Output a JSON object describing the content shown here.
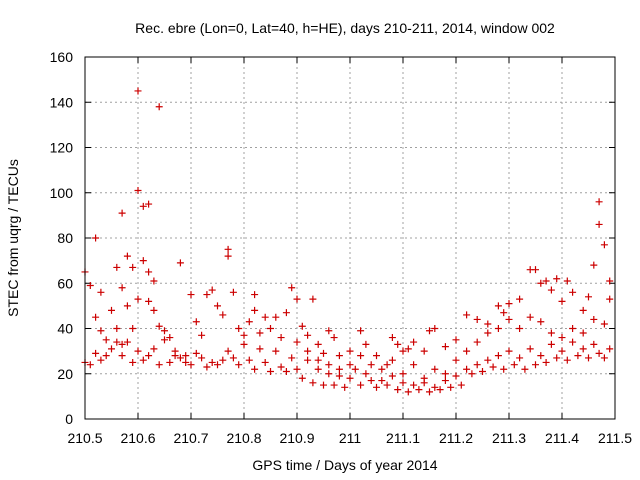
{
  "chart_data": {
    "type": "scatter",
    "title": "Rec. ebre (Lon=0, Lat=40, h=HE), days 210-211, 2014, window 002",
    "xlabel": "GPS time / Days of year 2014",
    "ylabel": "STEC from uqrg / TECUs",
    "xlim": [
      210.5,
      211.5
    ],
    "ylim": [
      0,
      160
    ],
    "xticks": [
      210.5,
      210.6,
      210.7,
      210.8,
      210.9,
      211.0,
      211.1,
      211.2,
      211.3,
      211.4,
      211.5
    ],
    "xtick_labels": [
      "210.5",
      "210.6",
      "210.7",
      "210.8",
      "210.9",
      "211",
      "211.1",
      "211.2",
      "211.3",
      "211.4",
      "211.5"
    ],
    "yticks": [
      0,
      20,
      40,
      60,
      80,
      100,
      120,
      140,
      160
    ],
    "ytick_labels": [
      "0",
      "20",
      "40",
      "60",
      "80",
      "100",
      "120",
      "140",
      "160"
    ],
    "grid": true,
    "marker": "plus",
    "color": "#cc0000",
    "series": [
      {
        "points": [
          [
            210.5,
            65
          ],
          [
            210.51,
            59
          ],
          [
            210.52,
            80
          ],
          [
            210.52,
            45
          ],
          [
            210.53,
            56
          ],
          [
            210.53,
            39
          ],
          [
            210.54,
            35
          ],
          [
            210.55,
            48
          ],
          [
            210.56,
            67
          ],
          [
            210.56,
            40
          ],
          [
            210.57,
            91
          ],
          [
            210.57,
            58
          ],
          [
            210.57,
            33
          ],
          [
            210.58,
            72
          ],
          [
            210.58,
            50
          ],
          [
            210.59,
            67
          ],
          [
            210.59,
            40
          ],
          [
            210.6,
            145
          ],
          [
            210.6,
            101
          ],
          [
            210.6,
            53
          ],
          [
            210.61,
            94
          ],
          [
            210.61,
            70
          ],
          [
            210.62,
            95
          ],
          [
            210.62,
            65
          ],
          [
            210.62,
            52
          ],
          [
            210.63,
            61
          ],
          [
            210.63,
            48
          ],
          [
            210.64,
            138
          ],
          [
            210.64,
            41
          ],
          [
            210.65,
            39
          ],
          [
            210.66,
            36
          ],
          [
            210.67,
            30
          ],
          [
            210.68,
            69
          ],
          [
            210.69,
            28
          ],
          [
            210.7,
            55
          ],
          [
            210.71,
            43
          ],
          [
            210.72,
            37
          ],
          [
            210.73,
            55
          ],
          [
            210.74,
            57
          ],
          [
            210.75,
            50
          ],
          [
            210.76,
            46
          ],
          [
            210.77,
            75
          ],
          [
            210.77,
            72
          ],
          [
            210.78,
            56
          ],
          [
            210.79,
            40
          ],
          [
            210.8,
            37
          ],
          [
            210.81,
            43
          ],
          [
            210.82,
            55
          ],
          [
            210.82,
            48
          ],
          [
            210.83,
            38
          ],
          [
            210.84,
            45
          ],
          [
            210.85,
            40
          ],
          [
            210.86,
            45
          ],
          [
            210.87,
            36
          ],
          [
            210.88,
            47
          ],
          [
            210.89,
            58
          ],
          [
            210.9,
            53
          ],
          [
            210.91,
            41
          ],
          [
            210.92,
            37
          ],
          [
            210.93,
            53
          ],
          [
            210.94,
            33
          ],
          [
            210.95,
            29
          ],
          [
            210.96,
            39
          ],
          [
            210.97,
            36
          ],
          [
            210.98,
            28
          ],
          [
            211.0,
            24
          ],
          [
            211.02,
            39
          ],
          [
            211.03,
            33
          ],
          [
            211.05,
            28
          ],
          [
            211.07,
            24
          ],
          [
            211.08,
            36
          ],
          [
            211.09,
            33
          ],
          [
            211.1,
            30
          ],
          [
            211.11,
            31
          ],
          [
            211.12,
            34
          ],
          [
            211.14,
            30
          ],
          [
            211.15,
            39
          ],
          [
            211.16,
            40
          ],
          [
            211.18,
            32
          ],
          [
            211.2,
            35
          ],
          [
            211.22,
            46
          ],
          [
            211.24,
            44
          ],
          [
            211.26,
            42
          ],
          [
            211.28,
            50
          ],
          [
            211.29,
            47
          ],
          [
            211.3,
            51
          ],
          [
            211.32,
            53
          ],
          [
            211.34,
            66
          ],
          [
            211.35,
            66
          ],
          [
            211.36,
            60
          ],
          [
            211.37,
            61
          ],
          [
            211.38,
            57
          ],
          [
            211.39,
            62
          ],
          [
            211.4,
            52
          ],
          [
            211.41,
            61
          ],
          [
            211.42,
            56
          ],
          [
            211.44,
            48
          ],
          [
            211.45,
            54
          ],
          [
            211.46,
            68
          ],
          [
            211.47,
            96
          ],
          [
            211.47,
            86
          ],
          [
            211.48,
            77
          ],
          [
            211.49,
            61
          ],
          [
            211.49,
            53
          ],
          [
            210.5,
            25
          ],
          [
            210.51,
            24
          ],
          [
            210.52,
            29
          ],
          [
            210.53,
            26
          ],
          [
            210.54,
            28
          ],
          [
            210.55,
            31
          ],
          [
            210.56,
            34
          ],
          [
            210.57,
            28
          ],
          [
            210.58,
            34
          ],
          [
            210.59,
            25
          ],
          [
            210.6,
            30
          ],
          [
            210.61,
            26
          ],
          [
            210.62,
            28
          ],
          [
            210.63,
            31
          ],
          [
            210.64,
            24
          ],
          [
            210.65,
            35
          ],
          [
            210.66,
            25
          ],
          [
            210.67,
            28
          ],
          [
            210.68,
            27
          ],
          [
            210.69,
            25
          ],
          [
            210.7,
            24
          ],
          [
            210.71,
            29
          ],
          [
            210.72,
            27
          ],
          [
            210.73,
            23
          ],
          [
            210.74,
            25
          ],
          [
            210.75,
            24
          ],
          [
            210.76,
            26
          ],
          [
            210.77,
            30
          ],
          [
            210.78,
            27
          ],
          [
            210.79,
            24
          ],
          [
            210.8,
            33
          ],
          [
            210.81,
            26
          ],
          [
            210.82,
            22
          ],
          [
            210.83,
            31
          ],
          [
            210.84,
            25
          ],
          [
            210.85,
            21
          ],
          [
            210.86,
            30
          ],
          [
            210.87,
            23
          ],
          [
            210.88,
            21
          ],
          [
            210.89,
            27
          ],
          [
            210.9,
            22
          ],
          [
            210.91,
            18
          ],
          [
            210.92,
            26
          ],
          [
            210.93,
            16
          ],
          [
            210.94,
            22
          ],
          [
            210.95,
            15
          ],
          [
            210.96,
            20
          ],
          [
            210.97,
            15
          ],
          [
            210.98,
            19
          ],
          [
            210.99,
            14
          ],
          [
            211.0,
            18
          ],
          [
            211.01,
            22
          ],
          [
            211.02,
            15
          ],
          [
            211.03,
            20
          ],
          [
            211.04,
            17
          ],
          [
            211.05,
            14
          ],
          [
            211.06,
            17
          ],
          [
            211.07,
            15
          ],
          [
            211.08,
            19
          ],
          [
            211.09,
            13
          ],
          [
            211.1,
            16
          ],
          [
            211.11,
            12
          ],
          [
            211.12,
            15
          ],
          [
            211.13,
            13
          ],
          [
            211.14,
            16
          ],
          [
            211.15,
            12
          ],
          [
            211.16,
            14
          ],
          [
            211.17,
            13
          ],
          [
            211.18,
            17
          ],
          [
            211.19,
            14
          ],
          [
            211.2,
            19
          ],
          [
            211.21,
            15
          ],
          [
            211.22,
            22
          ],
          [
            211.23,
            20
          ],
          [
            211.24,
            24
          ],
          [
            211.25,
            21
          ],
          [
            211.26,
            26
          ],
          [
            211.27,
            23
          ],
          [
            211.28,
            28
          ],
          [
            211.29,
            22
          ],
          [
            211.3,
            30
          ],
          [
            211.31,
            24
          ],
          [
            211.32,
            27
          ],
          [
            211.33,
            22
          ],
          [
            211.34,
            31
          ],
          [
            211.35,
            24
          ],
          [
            211.36,
            28
          ],
          [
            211.37,
            25
          ],
          [
            211.38,
            33
          ],
          [
            211.39,
            27
          ],
          [
            211.4,
            30
          ],
          [
            211.41,
            26
          ],
          [
            211.42,
            34
          ],
          [
            211.43,
            28
          ],
          [
            211.44,
            31
          ],
          [
            211.45,
            27
          ],
          [
            211.46,
            33
          ],
          [
            211.47,
            29
          ],
          [
            211.48,
            27
          ],
          [
            211.49,
            31
          ],
          [
            210.9,
            34
          ],
          [
            210.92,
            30
          ],
          [
            210.94,
            26
          ],
          [
            210.96,
            24
          ],
          [
            210.98,
            22
          ],
          [
            211.0,
            30
          ],
          [
            211.02,
            28
          ],
          [
            211.04,
            24
          ],
          [
            211.06,
            22
          ],
          [
            211.08,
            26
          ],
          [
            211.1,
            20
          ],
          [
            211.12,
            24
          ],
          [
            211.14,
            18
          ],
          [
            211.16,
            22
          ],
          [
            211.18,
            20
          ],
          [
            211.2,
            26
          ],
          [
            211.22,
            30
          ],
          [
            211.24,
            34
          ],
          [
            211.26,
            38
          ],
          [
            211.28,
            40
          ],
          [
            211.3,
            44
          ],
          [
            211.32,
            40
          ],
          [
            211.34,
            45
          ],
          [
            211.36,
            43
          ],
          [
            211.38,
            38
          ],
          [
            211.4,
            36
          ],
          [
            211.42,
            40
          ],
          [
            211.44,
            38
          ],
          [
            211.46,
            44
          ],
          [
            211.48,
            42
          ]
        ]
      }
    ]
  }
}
